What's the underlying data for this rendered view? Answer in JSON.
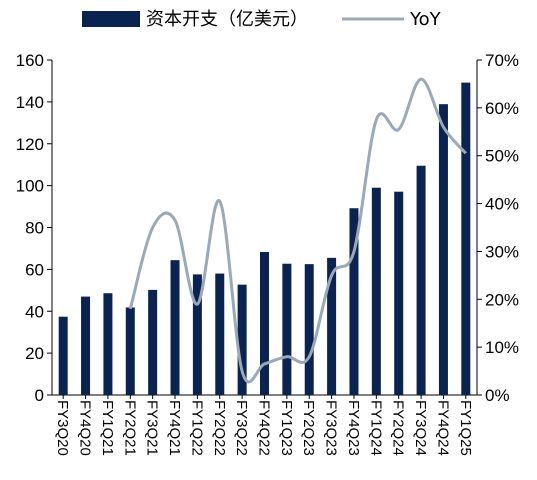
{
  "chart_data": {
    "type": "bar",
    "categories": [
      "FY3Q20",
      "FY4Q20",
      "FY1Q21",
      "FY2Q21",
      "FY3Q21",
      "FY4Q21",
      "FY1Q22",
      "FY2Q22",
      "FY3Q22",
      "FY4Q22",
      "FY1Q23",
      "FY2Q23",
      "FY3Q23",
      "FY4Q23",
      "FY1Q24",
      "FY2Q24",
      "FY3Q24",
      "FY4Q24",
      "FY1Q25"
    ],
    "series": [
      {
        "name": "资本开支（亿美元）",
        "type": "bar",
        "axis": "left",
        "color": "#0b2350",
        "values": [
          37.4,
          47.0,
          48.6,
          41.8,
          50.2,
          64.4,
          57.6,
          58.0,
          52.7,
          68.3,
          62.7,
          62.5,
          65.5,
          89.2,
          99.0,
          97.1,
          109.5,
          138.9,
          149.2
        ]
      },
      {
        "name": "YoY",
        "type": "line",
        "axis": "right",
        "color": "#9aa9b8",
        "values": [
          null,
          null,
          null,
          0.18,
          0.35,
          0.365,
          0.19,
          0.405,
          0.05,
          0.065,
          0.08,
          0.08,
          0.25,
          0.3,
          0.575,
          0.555,
          0.66,
          0.56,
          0.505
        ]
      }
    ],
    "yaxis_left": {
      "ylim": [
        0,
        160
      ],
      "ticks": [
        "0",
        "20",
        "40",
        "60",
        "80",
        "100",
        "120",
        "140",
        "160"
      ]
    },
    "yaxis_right": {
      "ylim": [
        0,
        0.7
      ],
      "ticks": [
        "0%",
        "10%",
        "20%",
        "30%",
        "40%",
        "50%",
        "60%",
        "70%"
      ]
    },
    "grid": false,
    "legend": {
      "position": "top"
    }
  }
}
